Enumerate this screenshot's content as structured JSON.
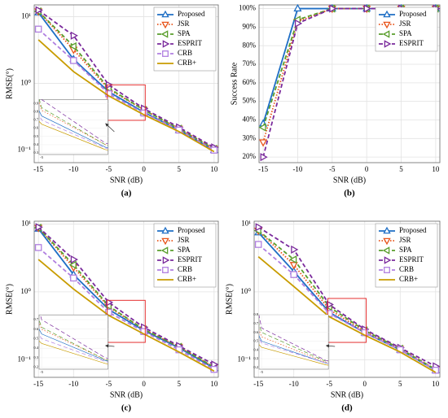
{
  "chart_data": [
    {
      "type": "line",
      "caption": "(a)",
      "xlabel": "SNR (dB)",
      "ylabel": "RMSE(°)",
      "log_y": true,
      "grid": true,
      "legend": "upper-right",
      "x": [
        -15,
        -10,
        -5,
        0,
        5,
        10
      ],
      "xlim": [
        -15.6,
        10.6
      ],
      "xticks": [
        -15,
        -10,
        -5,
        0,
        5,
        10
      ],
      "ylim": [
        0.065,
        15
      ],
      "yticks": [
        {
          "value": 0.1,
          "label": "10⁻¹"
        },
        {
          "value": 1,
          "label": "10⁰"
        },
        {
          "value": 10,
          "label": "10¹"
        }
      ],
      "series": [
        {
          "name": "Proposed",
          "color": "#1f6fc5",
          "dash": "solid",
          "marker": "up",
          "values": [
            11.5,
            2.3,
            0.75,
            0.37,
            0.2,
            0.1
          ]
        },
        {
          "name": "JSR",
          "color": "#e8541a",
          "dash": "dotted",
          "marker": "down",
          "values": [
            12,
            3.2,
            0.82,
            0.4,
            0.21,
            0.105
          ]
        },
        {
          "name": "SPA",
          "color": "#5a9e2c",
          "dash": "dashed",
          "marker": "left",
          "values": [
            12,
            3.6,
            0.85,
            0.4,
            0.21,
            0.105
          ]
        },
        {
          "name": "ESPRIT",
          "color": "#7a2a9c",
          "dash": "dashed",
          "marker": "right",
          "values": [
            12.5,
            5.2,
            0.95,
            0.42,
            0.22,
            0.11
          ]
        },
        {
          "name": "CRB",
          "color": "#b07fe0",
          "dash": "dashed",
          "marker": "square",
          "values": [
            6.5,
            2.2,
            0.7,
            0.36,
            0.2,
            0.1
          ]
        },
        {
          "name": "CRB+",
          "color": "#c89c00",
          "dash": "solid",
          "marker": null,
          "values": [
            4.5,
            1.5,
            0.65,
            0.34,
            0.19,
            0.095
          ]
        }
      ],
      "inset": {
        "xlim": [
          -5.2,
          0.2
        ],
        "ylim": [
          0.28,
          0.95
        ],
        "xticks": [
          -5
        ],
        "yticks": [
          0.3,
          0.4,
          0.5,
          0.6,
          0.7,
          0.8,
          0.9
        ]
      }
    },
    {
      "type": "line",
      "caption": "(b)",
      "xlabel": "SNR (dB)",
      "ylabel": "Success Rate",
      "log_y": false,
      "grid": true,
      "legend": "upper-right",
      "x": [
        -15,
        -10,
        -5,
        0,
        5,
        10
      ],
      "xlim": [
        -15.6,
        10.6
      ],
      "xticks": [
        -15,
        -10,
        -5,
        0,
        5,
        10
      ],
      "ylim": [
        17,
        102
      ],
      "yticks": [
        {
          "value": 20,
          "label": "20%"
        },
        {
          "value": 30,
          "label": "30%"
        },
        {
          "value": 40,
          "label": "40%"
        },
        {
          "value": 50,
          "label": "50%"
        },
        {
          "value": 60,
          "label": "60%"
        },
        {
          "value": 70,
          "label": "70%"
        },
        {
          "value": 80,
          "label": "80%"
        },
        {
          "value": 90,
          "label": "90%"
        },
        {
          "value": 100,
          "label": "100%"
        }
      ],
      "series": [
        {
          "name": "Proposed",
          "color": "#1f6fc5",
          "dash": "solid",
          "marker": "up",
          "values": [
            38,
            100,
            100,
            100,
            100,
            100
          ]
        },
        {
          "name": "JSR",
          "color": "#e8541a",
          "dash": "dotted",
          "marker": "down",
          "values": [
            28,
            93,
            100,
            100,
            100,
            100
          ]
        },
        {
          "name": "SPA",
          "color": "#5a9e2c",
          "dash": "dashed",
          "marker": "left",
          "values": [
            36,
            94,
            100,
            100,
            100,
            100
          ]
        },
        {
          "name": "ESPRIT",
          "color": "#7a2a9c",
          "dash": "dashed",
          "marker": "right",
          "values": [
            20,
            92,
            100,
            100,
            100,
            100
          ]
        }
      ]
    },
    {
      "type": "line",
      "caption": "(c)",
      "xlabel": "SNR (dB)",
      "ylabel": "RMSE(°)",
      "log_y": true,
      "grid": true,
      "legend": "upper-right",
      "x": [
        -15,
        -10,
        -5,
        0,
        5,
        10
      ],
      "xlim": [
        -15.6,
        10.6
      ],
      "xticks": [
        -15,
        -10,
        -5,
        0,
        5,
        10
      ],
      "ylim": [
        0.055,
        11
      ],
      "yticks": [
        {
          "value": 0.1,
          "label": "10⁻¹"
        },
        {
          "value": 1,
          "label": "10⁰"
        },
        {
          "value": 10,
          "label": "10¹"
        }
      ],
      "series": [
        {
          "name": "Proposed",
          "color": "#1f6fc5",
          "dash": "solid",
          "marker": "up",
          "values": [
            8.5,
            1.8,
            0.55,
            0.27,
            0.15,
            0.075
          ]
        },
        {
          "name": "JSR",
          "color": "#e8541a",
          "dash": "dotted",
          "marker": "down",
          "values": [
            8.8,
            2.3,
            0.6,
            0.28,
            0.155,
            0.078
          ]
        },
        {
          "name": "SPA",
          "color": "#5a9e2c",
          "dash": "dashed",
          "marker": "left",
          "values": [
            8.8,
            2.5,
            0.62,
            0.28,
            0.155,
            0.078
          ]
        },
        {
          "name": "ESPRIT",
          "color": "#7a2a9c",
          "dash": "dashed",
          "marker": "right",
          "values": [
            9,
            3,
            0.7,
            0.3,
            0.16,
            0.085
          ]
        },
        {
          "name": "CRB",
          "color": "#b07fe0",
          "dash": "dashed",
          "marker": "square",
          "values": [
            4.5,
            1.6,
            0.5,
            0.26,
            0.14,
            0.072
          ]
        },
        {
          "name": "CRB+",
          "color": "#c89c00",
          "dash": "solid",
          "marker": null,
          "values": [
            3,
            1.1,
            0.45,
            0.24,
            0.13,
            0.068
          ]
        }
      ],
      "inset": {
        "xlim": [
          -5.2,
          0.2
        ],
        "ylim": [
          0.18,
          0.75
        ],
        "xticks": [
          -5
        ],
        "yticks": [
          0.2,
          0.3,
          0.4,
          0.5,
          0.6,
          0.7
        ]
      }
    },
    {
      "type": "line",
      "caption": "(d)",
      "xlabel": "SNR (dB)",
      "ylabel": "RMSE(°)",
      "log_y": true,
      "grid": true,
      "legend": "upper-right",
      "x": [
        -15,
        -10,
        -5,
        0,
        5,
        10
      ],
      "xlim": [
        -15.6,
        10.6
      ],
      "xticks": [
        -15,
        -10,
        -5,
        0,
        5,
        10
      ],
      "ylim": [
        0.055,
        11
      ],
      "yticks": [
        {
          "value": 0.1,
          "label": "10⁻¹"
        },
        {
          "value": 1,
          "label": "10⁰"
        },
        {
          "value": 10,
          "label": "10¹"
        }
      ],
      "series": [
        {
          "name": "Proposed",
          "color": "#1f6fc5",
          "dash": "solid",
          "marker": "up",
          "values": [
            7.5,
            2,
            0.5,
            0.25,
            0.14,
            0.07
          ]
        },
        {
          "name": "JSR",
          "color": "#e8541a",
          "dash": "dotted",
          "marker": "down",
          "values": [
            8,
            2.5,
            0.55,
            0.26,
            0.145,
            0.072
          ]
        },
        {
          "name": "SPA",
          "color": "#5a9e2c",
          "dash": "dashed",
          "marker": "left",
          "values": [
            8,
            3,
            0.6,
            0.27,
            0.145,
            0.072
          ]
        },
        {
          "name": "ESPRIT",
          "color": "#7a2a9c",
          "dash": "dashed",
          "marker": "right",
          "values": [
            9,
            4.2,
            0.65,
            0.28,
            0.15,
            0.08
          ]
        },
        {
          "name": "CRB",
          "color": "#b07fe0",
          "dash": "dashed",
          "marker": "square",
          "values": [
            5,
            1.8,
            0.48,
            0.25,
            0.14,
            0.07
          ]
        },
        {
          "name": "CRB+",
          "color": "#c89c00",
          "dash": "solid",
          "marker": null,
          "values": [
            3.3,
            1.2,
            0.43,
            0.23,
            0.13,
            0.065
          ]
        }
      ],
      "inset": {
        "xlim": [
          -5.2,
          0.2
        ],
        "ylim": [
          0.18,
          0.8
        ],
        "xticks": [
          -5
        ],
        "yticks": [
          0.2,
          0.3,
          0.4,
          0.5,
          0.6,
          0.7,
          0.8
        ]
      }
    }
  ]
}
